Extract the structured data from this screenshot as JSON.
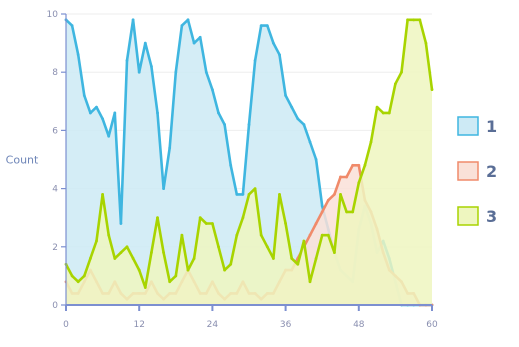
{
  "chart_data": {
    "type": "area",
    "ylabel": "Count",
    "x": [
      0,
      1,
      2,
      3,
      4,
      5,
      6,
      7,
      8,
      9,
      10,
      11,
      12,
      13,
      14,
      15,
      16,
      17,
      18,
      19,
      20,
      21,
      22,
      23,
      24,
      25,
      26,
      27,
      28,
      29,
      30,
      31,
      32,
      33,
      34,
      35,
      36,
      37,
      38,
      39,
      40,
      41,
      42,
      43,
      44,
      45,
      46,
      47,
      48,
      49,
      50,
      51,
      52,
      53,
      54,
      55,
      56,
      57,
      58,
      59,
      60
    ],
    "xlim": [
      0,
      60
    ],
    "ylim": [
      0,
      10
    ],
    "xticks": [
      0,
      12,
      24,
      36,
      48,
      60
    ],
    "yticks": [
      0,
      2,
      4,
      6,
      8,
      10
    ],
    "legend_position": "right",
    "series": [
      {
        "name": "1",
        "color": "#3fb6e0",
        "fill": "#cdeaf5",
        "values": [
          9.8,
          9.6,
          8.6,
          7.2,
          6.6,
          6.8,
          6.4,
          5.8,
          6.6,
          2.8,
          8.4,
          9.8,
          8.0,
          9.0,
          8.2,
          6.6,
          4.0,
          5.4,
          8.0,
          9.6,
          9.8,
          9.0,
          9.2,
          8.0,
          7.4,
          6.6,
          6.2,
          4.8,
          3.8,
          3.8,
          6.2,
          8.4,
          9.6,
          9.6,
          9.0,
          8.6,
          7.2,
          6.8,
          6.4,
          6.2,
          5.6,
          5.0,
          3.4,
          2.6,
          1.8,
          1.2,
          1.0,
          0.8,
          2.6,
          3.4,
          2.8,
          1.8,
          2.2,
          1.6,
          0.8,
          0.0,
          0.0,
          0.0,
          0.0,
          0.0,
          0.0
        ]
      },
      {
        "name": "2",
        "color": "#f08a6a",
        "fill": "#fae1d8",
        "values": [
          0.8,
          0.4,
          0.4,
          0.8,
          1.2,
          0.8,
          0.4,
          0.4,
          0.8,
          0.4,
          0.2,
          0.4,
          0.4,
          0.4,
          0.8,
          0.4,
          0.2,
          0.4,
          0.4,
          0.8,
          1.2,
          0.8,
          0.4,
          0.4,
          0.8,
          0.4,
          0.2,
          0.4,
          0.4,
          0.8,
          0.4,
          0.4,
          0.2,
          0.4,
          0.4,
          0.8,
          1.2,
          1.2,
          1.6,
          2.0,
          2.4,
          2.8,
          3.2,
          3.6,
          3.8,
          4.4,
          4.4,
          4.8,
          4.8,
          3.6,
          3.2,
          2.6,
          1.8,
          1.2,
          1.0,
          0.8,
          0.4,
          0.4,
          0.0,
          0.0,
          0.0
        ]
      },
      {
        "name": "3",
        "color": "#a8d400",
        "fill": "#eef6bf",
        "values": [
          1.4,
          1.0,
          0.8,
          1.0,
          1.6,
          2.2,
          3.8,
          2.4,
          1.6,
          1.8,
          2.0,
          1.6,
          1.2,
          0.6,
          1.8,
          3.0,
          1.8,
          0.8,
          1.0,
          2.4,
          1.2,
          1.6,
          3.0,
          2.8,
          2.8,
          2.0,
          1.2,
          1.4,
          2.4,
          3.0,
          3.8,
          4.0,
          2.4,
          2.0,
          1.6,
          3.8,
          2.8,
          1.6,
          1.4,
          2.2,
          0.8,
          1.6,
          2.4,
          2.4,
          1.8,
          3.8,
          3.2,
          3.2,
          4.2,
          4.8,
          5.6,
          6.8,
          6.6,
          6.6,
          7.6,
          8.0,
          9.8,
          9.8,
          9.8,
          9.0,
          7.4
        ]
      }
    ]
  }
}
